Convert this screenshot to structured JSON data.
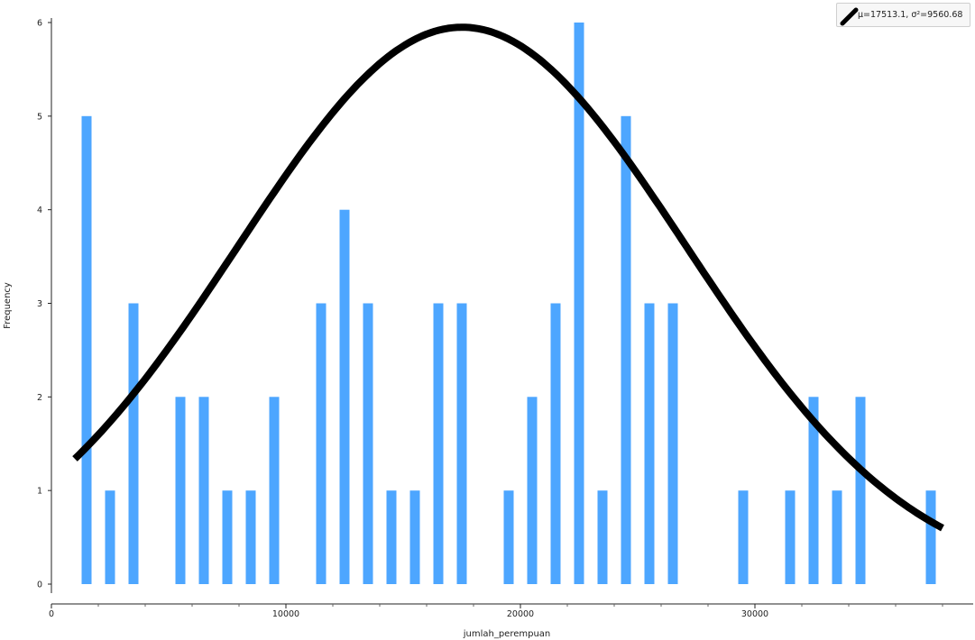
{
  "chart_data": {
    "type": "bar",
    "xlabel": "jumlah_perempuan",
    "ylabel": "Frequency",
    "xlim": [
      0,
      39000
    ],
    "ylim": [
      0,
      6
    ],
    "x_ticks": [
      0,
      10000,
      20000,
      30000
    ],
    "y_ticks": [
      0,
      1,
      2,
      3,
      4,
      5,
      6
    ],
    "grid": false,
    "legend_position": "top-right",
    "bar_color": "#4da6ff",
    "curve_color": "#000000",
    "bins": [
      {
        "x": 1500,
        "value": 5
      },
      {
        "x": 2500,
        "value": 1
      },
      {
        "x": 3500,
        "value": 3
      },
      {
        "x": 5500,
        "value": 2
      },
      {
        "x": 6500,
        "value": 2
      },
      {
        "x": 7500,
        "value": 1
      },
      {
        "x": 8500,
        "value": 1
      },
      {
        "x": 9500,
        "value": 2
      },
      {
        "x": 11500,
        "value": 3
      },
      {
        "x": 12500,
        "value": 4
      },
      {
        "x": 13500,
        "value": 3
      },
      {
        "x": 14500,
        "value": 1
      },
      {
        "x": 15500,
        "value": 1
      },
      {
        "x": 16500,
        "value": 3
      },
      {
        "x": 17500,
        "value": 3
      },
      {
        "x": 19500,
        "value": 1
      },
      {
        "x": 20500,
        "value": 2
      },
      {
        "x": 21500,
        "value": 3
      },
      {
        "x": 22500,
        "value": 6
      },
      {
        "x": 23500,
        "value": 1
      },
      {
        "x": 24500,
        "value": 5
      },
      {
        "x": 25500,
        "value": 3
      },
      {
        "x": 26500,
        "value": 3
      },
      {
        "x": 29500,
        "value": 1
      },
      {
        "x": 31500,
        "value": 1
      },
      {
        "x": 32500,
        "value": 2
      },
      {
        "x": 33500,
        "value": 1
      },
      {
        "x": 34500,
        "value": 2
      },
      {
        "x": 37500,
        "value": 1
      }
    ],
    "curve": {
      "name": "μ=17513.1, σ²=9560.68",
      "mu": 17513.1,
      "sigma": 9560.68,
      "peak": 5.95,
      "x_range": [
        1000,
        38000
      ]
    }
  }
}
